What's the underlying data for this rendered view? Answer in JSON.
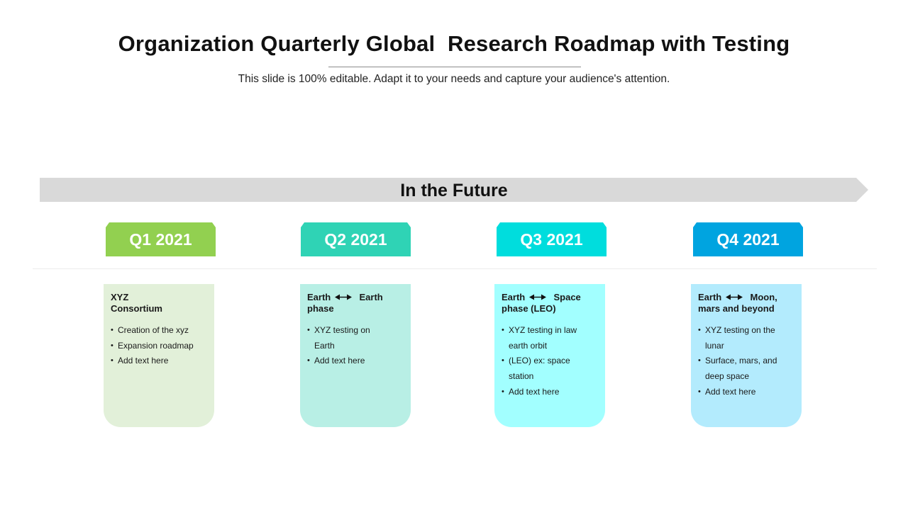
{
  "header": {
    "title": "Organization Quarterly Global  Research Roadmap with Testing",
    "subtitle": "This slide is 100% editable. Adapt it to your needs and capture your audience's attention."
  },
  "banner": {
    "label": "In the Future",
    "color": "#d9d9d9"
  },
  "quarters": [
    {
      "label": "Q1 2021",
      "color": "#92d050",
      "card_color": "#e2f0d9",
      "title_parts": [
        "XYZ Consortium"
      ],
      "bullets": [
        "Creation of the xyz",
        "Expansion roadmap",
        "Add text here"
      ]
    },
    {
      "label": "Q2 2021",
      "color": "#2fd3b5",
      "card_color": "#b8efe5",
      "title_parts": [
        "Earth",
        "Earth phase"
      ],
      "bullets": [
        "XYZ  testing on Earth",
        "Add text here"
      ]
    },
    {
      "label": "Q3 2021",
      "color": "#00dddd",
      "card_color": "#a2ffff",
      "title_parts": [
        "Earth",
        "Space phase (LEO)"
      ],
      "bullets": [
        "XYZ  testing in law earth orbit",
        "(LEO) ex:  space station",
        "Add text here"
      ]
    },
    {
      "label": "Q4 2021",
      "color": "#00a4e0",
      "card_color": "#b3ebfd",
      "title_parts": [
        "Earth",
        "Moon, mars and beyond"
      ],
      "bullets": [
        "XYZ  testing on the lunar",
        "Surface, mars, and deep space",
        "Add text here"
      ]
    }
  ]
}
